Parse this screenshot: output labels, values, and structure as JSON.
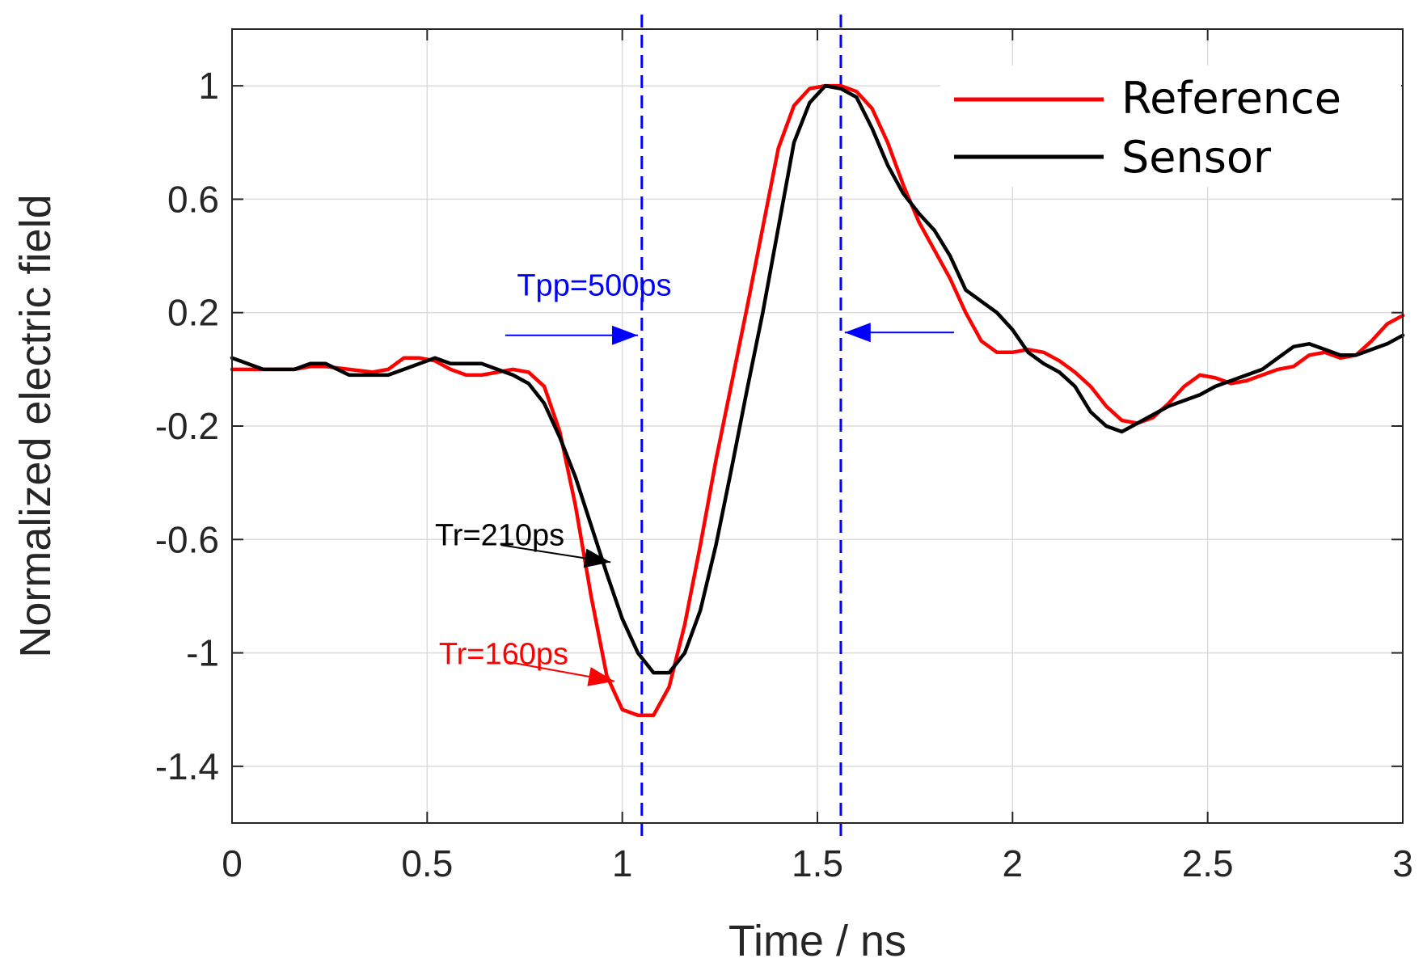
{
  "chart_data": {
    "type": "line",
    "title": "",
    "xlabel": "Time / ns",
    "ylabel": "Normalized electric field",
    "xlim": [
      0,
      3
    ],
    "ylim": [
      -1.6,
      1.2
    ],
    "xticks": [
      0,
      0.5,
      1,
      1.5,
      2,
      2.5,
      3
    ],
    "xtick_labels": [
      "0",
      "0.5",
      "1",
      "1.5",
      "2",
      "2.5",
      "3"
    ],
    "yticks": [
      1,
      0.6,
      0.2,
      -0.2,
      -0.6,
      -1,
      -1.4
    ],
    "ytick_labels": [
      "1",
      "0.6",
      "0.2",
      "-0.2",
      "-0.6",
      "-1",
      "-1.4"
    ],
    "grid": true,
    "legend_position": "top-right",
    "series": [
      {
        "name": "Reference",
        "color": "#ff0000",
        "x": [
          0,
          0.08,
          0.16,
          0.2,
          0.24,
          0.3,
          0.36,
          0.4,
          0.44,
          0.48,
          0.52,
          0.56,
          0.6,
          0.64,
          0.68,
          0.72,
          0.76,
          0.8,
          0.84,
          0.88,
          0.92,
          0.96,
          1.0,
          1.04,
          1.08,
          1.12,
          1.16,
          1.2,
          1.24,
          1.28,
          1.32,
          1.36,
          1.4,
          1.44,
          1.48,
          1.52,
          1.56,
          1.6,
          1.64,
          1.68,
          1.72,
          1.76,
          1.8,
          1.84,
          1.88,
          1.92,
          1.96,
          2.0,
          2.04,
          2.08,
          2.12,
          2.16,
          2.2,
          2.24,
          2.28,
          2.32,
          2.36,
          2.4,
          2.44,
          2.48,
          2.52,
          2.56,
          2.6,
          2.64,
          2.68,
          2.72,
          2.76,
          2.8,
          2.84,
          2.88,
          2.92,
          2.96,
          3.0
        ],
        "values": [
          0.0,
          0.0,
          0.0,
          0.01,
          0.01,
          0.0,
          -0.01,
          0.0,
          0.04,
          0.04,
          0.03,
          0.0,
          -0.02,
          -0.02,
          -0.01,
          0.0,
          -0.01,
          -0.06,
          -0.22,
          -0.48,
          -0.8,
          -1.08,
          -1.2,
          -1.22,
          -1.22,
          -1.12,
          -0.9,
          -0.62,
          -0.32,
          -0.05,
          0.22,
          0.5,
          0.78,
          0.93,
          0.99,
          1.0,
          1.0,
          0.98,
          0.92,
          0.8,
          0.65,
          0.52,
          0.42,
          0.32,
          0.2,
          0.1,
          0.06,
          0.06,
          0.07,
          0.06,
          0.03,
          -0.01,
          -0.06,
          -0.13,
          -0.18,
          -0.19,
          -0.17,
          -0.12,
          -0.06,
          -0.02,
          -0.03,
          -0.05,
          -0.04,
          -0.02,
          0.0,
          0.01,
          0.05,
          0.06,
          0.04,
          0.05,
          0.1,
          0.16,
          0.19
        ]
      },
      {
        "name": "Sensor",
        "color": "#000000",
        "x": [
          0,
          0.08,
          0.16,
          0.2,
          0.24,
          0.3,
          0.36,
          0.4,
          0.44,
          0.48,
          0.52,
          0.56,
          0.6,
          0.64,
          0.68,
          0.72,
          0.76,
          0.8,
          0.84,
          0.88,
          0.92,
          0.96,
          1.0,
          1.04,
          1.08,
          1.12,
          1.16,
          1.2,
          1.24,
          1.28,
          1.32,
          1.36,
          1.4,
          1.44,
          1.48,
          1.52,
          1.56,
          1.6,
          1.64,
          1.68,
          1.72,
          1.76,
          1.8,
          1.84,
          1.88,
          1.92,
          1.96,
          2.0,
          2.04,
          2.08,
          2.12,
          2.16,
          2.2,
          2.24,
          2.28,
          2.32,
          2.36,
          2.4,
          2.44,
          2.48,
          2.52,
          2.56,
          2.6,
          2.64,
          2.68,
          2.72,
          2.76,
          2.8,
          2.84,
          2.88,
          2.92,
          2.96,
          3.0
        ],
        "values": [
          0.04,
          0.0,
          0.0,
          0.02,
          0.02,
          -0.02,
          -0.02,
          -0.02,
          0.0,
          0.02,
          0.04,
          0.02,
          0.02,
          0.02,
          0.0,
          -0.02,
          -0.05,
          -0.12,
          -0.24,
          -0.38,
          -0.55,
          -0.72,
          -0.88,
          -1.0,
          -1.07,
          -1.07,
          -1.0,
          -0.85,
          -0.62,
          -0.35,
          -0.07,
          0.2,
          0.5,
          0.8,
          0.94,
          1.0,
          0.99,
          0.96,
          0.85,
          0.72,
          0.62,
          0.55,
          0.49,
          0.4,
          0.28,
          0.24,
          0.2,
          0.14,
          0.06,
          0.02,
          -0.01,
          -0.06,
          -0.15,
          -0.2,
          -0.22,
          -0.19,
          -0.16,
          -0.13,
          -0.11,
          -0.09,
          -0.06,
          -0.04,
          -0.02,
          0.0,
          0.04,
          0.08,
          0.09,
          0.07,
          0.05,
          0.05,
          0.07,
          0.09,
          0.12
        ]
      }
    ],
    "reference_lines": [
      {
        "type": "vline",
        "x": 1.05,
        "color": "#0000ff",
        "style": "dashed"
      },
      {
        "type": "vline",
        "x": 1.56,
        "color": "#0000ff",
        "style": "dashed"
      }
    ],
    "annotations": [
      {
        "text": "Tpp=500ps",
        "color": "#0000ff",
        "x": 0.73,
        "y": 0.26,
        "arrow_from": [
          0.7,
          0.12
        ],
        "arrow_to": [
          1.04,
          0.12
        ]
      },
      {
        "text": "",
        "color": "#0000ff",
        "arrow_from": [
          1.85,
          0.13
        ],
        "arrow_to": [
          1.57,
          0.13
        ]
      },
      {
        "text": "Tr=210ps",
        "color": "#000000",
        "x": 0.52,
        "y": -0.62,
        "arrow_from": [
          0.69,
          -0.62
        ],
        "arrow_to": [
          0.97,
          -0.68
        ]
      },
      {
        "text": "Tr=160ps",
        "color": "#ff0000",
        "x": 0.53,
        "y": -1.04,
        "arrow_from": [
          0.7,
          -1.03
        ],
        "arrow_to": [
          0.98,
          -1.1
        ]
      }
    ]
  }
}
